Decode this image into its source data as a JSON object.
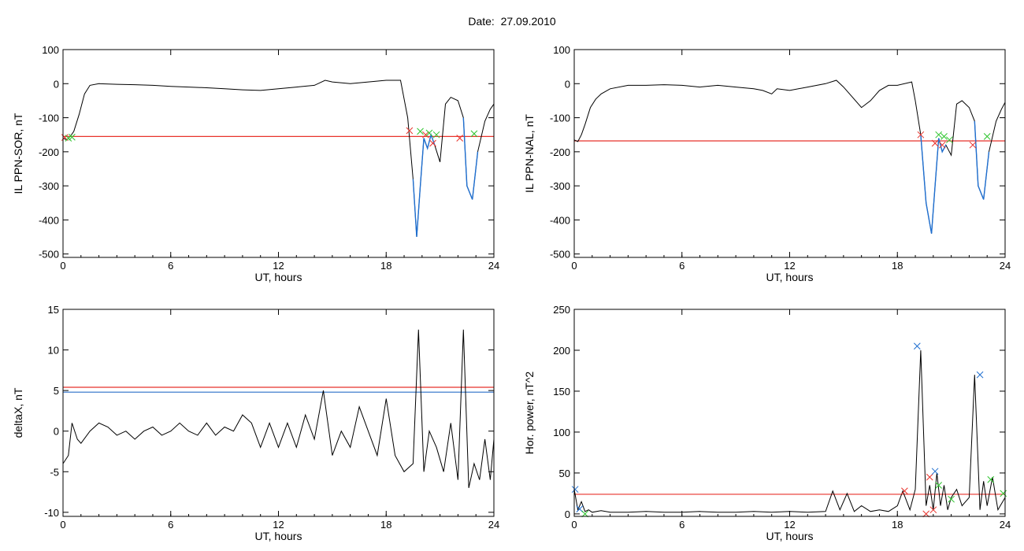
{
  "header": {
    "date_label": "Date:",
    "date_value": "27.09.2010"
  },
  "colors": {
    "trace": "#000000",
    "threshold_red": "#e8322b",
    "threshold_blue": "#2a6fc8",
    "segment_blue": "#1f6fd0",
    "marker_red": "#e8322b",
    "marker_green": "#2ec52e",
    "marker_blue": "#1f6fd0"
  },
  "chart_data": [
    {
      "type": "line",
      "xlabel": "UT, hours",
      "ylabel": "IL PPN-SOR, nT",
      "xlim": [
        0,
        24
      ],
      "ylim": [
        -510,
        100
      ],
      "xticks": [
        0,
        6,
        12,
        18,
        24
      ],
      "yticks": [
        100,
        0,
        -100,
        -200,
        -300,
        -400,
        -500
      ],
      "grid": false,
      "series": [
        {
          "x": [
            0,
            0.2,
            0.4,
            0.6,
            0.9,
            1.2,
            1.5,
            2,
            3,
            4,
            5,
            6,
            7,
            8,
            9,
            10,
            11,
            12,
            13,
            14,
            14.6,
            15,
            16,
            17,
            18,
            18.8,
            19.2,
            19.5,
            19.7,
            19.9,
            20.1,
            20.3,
            20.5,
            20.7,
            21,
            21.3,
            21.6,
            22,
            22.3,
            22.5,
            22.8,
            23.1,
            23.5,
            23.8,
            24
          ],
          "y": [
            -160,
            -165,
            -155,
            -140,
            -90,
            -30,
            -5,
            0,
            -2,
            -3,
            -5,
            -8,
            -10,
            -12,
            -15,
            -18,
            -20,
            -15,
            -10,
            -5,
            10,
            5,
            0,
            5,
            10,
            10,
            -100,
            -280,
            -450,
            -300,
            -160,
            -190,
            -150,
            -180,
            -230,
            -60,
            -40,
            -50,
            -100,
            -300,
            -340,
            -200,
            -110,
            -75,
            -60
          ]
        }
      ],
      "threshold_lines": [
        {
          "color": "red",
          "y": -155
        }
      ],
      "blue_segments": [
        {
          "x_from": 19.3,
          "x_to": 20.8
        },
        {
          "x_from": 22.3,
          "x_to": 23.1
        }
      ],
      "markers": [
        {
          "x": 0.1,
          "y": -158,
          "color": "red"
        },
        {
          "x": 0.3,
          "y": -160,
          "color": "green"
        },
        {
          "x": 0.5,
          "y": -157,
          "color": "green"
        },
        {
          "x": 19.3,
          "y": -138,
          "color": "red"
        },
        {
          "x": 19.9,
          "y": -140,
          "color": "green"
        },
        {
          "x": 20.2,
          "y": -150,
          "color": "red"
        },
        {
          "x": 20.4,
          "y": -145,
          "color": "green"
        },
        {
          "x": 20.6,
          "y": -175,
          "color": "red"
        },
        {
          "x": 20.8,
          "y": -150,
          "color": "green"
        },
        {
          "x": 22.1,
          "y": -160,
          "color": "red"
        },
        {
          "x": 22.9,
          "y": -147,
          "color": "green"
        }
      ]
    },
    {
      "type": "line",
      "xlabel": "UT, hours",
      "ylabel": "IL PPN-NAL, nT",
      "xlim": [
        0,
        24
      ],
      "ylim": [
        -510,
        100
      ],
      "xticks": [
        0,
        6,
        12,
        18,
        24
      ],
      "yticks": [
        100,
        0,
        -100,
        -200,
        -300,
        -400,
        -500
      ],
      "grid": false,
      "series": [
        {
          "x": [
            0,
            0.2,
            0.4,
            0.6,
            0.9,
            1.2,
            1.5,
            2,
            3,
            4,
            5,
            6,
            7,
            8,
            9,
            10,
            10.5,
            11,
            11.3,
            12,
            13,
            14,
            14.6,
            15,
            15.5,
            16,
            16.5,
            17,
            17.5,
            18,
            18.8,
            19,
            19.3,
            19.6,
            19.9,
            20.1,
            20.3,
            20.5,
            20.7,
            21,
            21.3,
            21.6,
            22,
            22.3,
            22.5,
            22.8,
            23.1,
            23.5,
            23.8,
            24
          ],
          "y": [
            -165,
            -170,
            -150,
            -120,
            -70,
            -45,
            -30,
            -15,
            -5,
            -5,
            -3,
            -5,
            -10,
            -5,
            -10,
            -15,
            -20,
            -30,
            -15,
            -20,
            -10,
            0,
            10,
            -10,
            -40,
            -70,
            -50,
            -20,
            -5,
            -5,
            5,
            -50,
            -150,
            -350,
            -440,
            -300,
            -160,
            -200,
            -180,
            -210,
            -60,
            -50,
            -70,
            -110,
            -300,
            -340,
            -200,
            -110,
            -75,
            -55
          ]
        }
      ],
      "threshold_lines": [
        {
          "color": "red",
          "y": -168
        }
      ],
      "blue_segments": [
        {
          "x_from": 19.3,
          "x_to": 20.8
        },
        {
          "x_from": 22.3,
          "x_to": 23.1
        }
      ],
      "markers": [
        {
          "x": 19.3,
          "y": -150,
          "color": "red"
        },
        {
          "x": 20.1,
          "y": -175,
          "color": "red"
        },
        {
          "x": 20.3,
          "y": -150,
          "color": "green"
        },
        {
          "x": 20.5,
          "y": -180,
          "color": "red"
        },
        {
          "x": 20.6,
          "y": -155,
          "color": "green"
        },
        {
          "x": 20.9,
          "y": -165,
          "color": "green"
        },
        {
          "x": 22.2,
          "y": -180,
          "color": "red"
        },
        {
          "x": 23.0,
          "y": -155,
          "color": "green"
        }
      ]
    },
    {
      "type": "line",
      "xlabel": "UT, hours",
      "ylabel": "deltaX, nT",
      "xlim": [
        0,
        24
      ],
      "ylim": [
        -10.5,
        15
      ],
      "xticks": [
        0,
        6,
        12,
        18,
        24
      ],
      "yticks": [
        15,
        10,
        5,
        0,
        -5,
        -10
      ],
      "grid": false,
      "series": [
        {
          "x": [
            0,
            0.3,
            0.5,
            0.8,
            1,
            1.5,
            2,
            2.5,
            3,
            3.5,
            4,
            4.5,
            5,
            5.5,
            6,
            6.5,
            7,
            7.5,
            8,
            8.5,
            9,
            9.5,
            10,
            10.5,
            11,
            11.5,
            12,
            12.5,
            13,
            13.5,
            14,
            14.5,
            15,
            15.5,
            16,
            16.5,
            17,
            17.5,
            18,
            18.5,
            19,
            19.5,
            19.8,
            20.1,
            20.4,
            20.8,
            21.2,
            21.6,
            22,
            22.3,
            22.6,
            22.9,
            23.2,
            23.5,
            23.8,
            24
          ],
          "y": [
            -4,
            -3,
            1,
            -1,
            -1.5,
            0,
            1,
            0.5,
            -0.5,
            0,
            -1,
            0,
            0.5,
            -0.5,
            0,
            1,
            0,
            -0.5,
            1,
            -0.5,
            0.5,
            0,
            2,
            1,
            -2,
            1,
            -2,
            1,
            -2,
            2,
            -1,
            5,
            -3,
            0,
            -2,
            3,
            0,
            -3,
            4,
            -3,
            -5,
            -4,
            12.5,
            -5,
            0,
            -2,
            -5,
            1,
            -6,
            12.5,
            -7,
            -4,
            -6,
            -1,
            -6,
            -1
          ]
        }
      ],
      "threshold_lines": [
        {
          "color": "red",
          "y": 5.4
        },
        {
          "color": "blue",
          "y": 4.8
        }
      ],
      "blue_segments": [],
      "markers": []
    },
    {
      "type": "line",
      "xlabel": "UT, hours",
      "ylabel": "Hor. power, nT^2",
      "xlim": [
        0,
        24
      ],
      "ylim": [
        -3,
        250
      ],
      "xticks": [
        0,
        6,
        12,
        18,
        24
      ],
      "yticks": [
        250,
        200,
        150,
        100,
        50,
        0
      ],
      "grid": false,
      "series": [
        {
          "x": [
            0,
            0.2,
            0.4,
            0.6,
            0.8,
            1,
            1.5,
            2,
            3,
            4,
            5,
            6,
            7,
            8,
            9,
            10,
            11,
            12,
            13,
            14,
            14.4,
            14.8,
            15.2,
            15.6,
            16,
            16.5,
            17,
            17.5,
            18,
            18.3,
            18.7,
            19,
            19.3,
            19.6,
            19.8,
            20,
            20.2,
            20.4,
            20.6,
            20.8,
            21,
            21.3,
            21.6,
            22,
            22.3,
            22.6,
            22.8,
            23,
            23.3,
            23.6,
            24
          ],
          "y": [
            30,
            5,
            15,
            3,
            5,
            2,
            4,
            2,
            2,
            3,
            2,
            2,
            3,
            2,
            2,
            3,
            2,
            3,
            2,
            3,
            28,
            5,
            25,
            3,
            10,
            3,
            5,
            3,
            10,
            28,
            5,
            30,
            200,
            10,
            35,
            5,
            50,
            10,
            35,
            5,
            20,
            30,
            10,
            20,
            170,
            5,
            40,
            10,
            45,
            5,
            20
          ]
        }
      ],
      "threshold_lines": [
        {
          "color": "red",
          "y": 24
        }
      ],
      "blue_segments": [],
      "markers": [
        {
          "x": 0.05,
          "y": 30,
          "color": "blue"
        },
        {
          "x": 0.3,
          "y": 6,
          "color": "blue"
        },
        {
          "x": 0.6,
          "y": 0,
          "color": "green"
        },
        {
          "x": 18.4,
          "y": 28,
          "color": "red"
        },
        {
          "x": 19.1,
          "y": 205,
          "color": "blue"
        },
        {
          "x": 19.6,
          "y": 0,
          "color": "red"
        },
        {
          "x": 19.8,
          "y": 45,
          "color": "red"
        },
        {
          "x": 20.1,
          "y": 52,
          "color": "blue"
        },
        {
          "x": 20.0,
          "y": 5,
          "color": "red"
        },
        {
          "x": 20.3,
          "y": 35,
          "color": "green"
        },
        {
          "x": 21.0,
          "y": 18,
          "color": "green"
        },
        {
          "x": 22.6,
          "y": 170,
          "color": "blue"
        },
        {
          "x": 23.2,
          "y": 42,
          "color": "green"
        },
        {
          "x": 23.9,
          "y": 25,
          "color": "green"
        }
      ]
    }
  ]
}
